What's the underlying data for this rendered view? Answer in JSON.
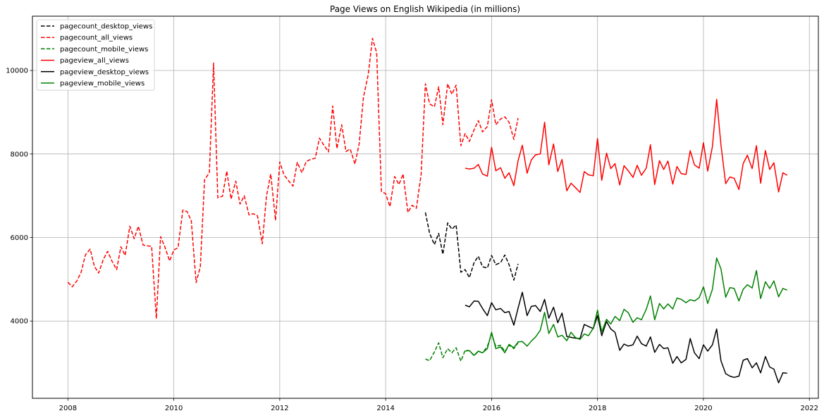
{
  "chart_data": {
    "type": "line",
    "title": "Page Views on English Wikipedia (in millions)",
    "xlabel": "",
    "ylabel": "",
    "xlim": [
      2007.33,
      2022.17
    ],
    "ylim": [
      2150,
      11300
    ],
    "xticks": [
      2008,
      2010,
      2012,
      2014,
      2016,
      2018,
      2020,
      2022
    ],
    "xtick_labels": [
      "2008",
      "2010",
      "2012",
      "2014",
      "2016",
      "2018",
      "2020",
      "2022"
    ],
    "yticks": [
      4000,
      6000,
      8000,
      10000
    ],
    "ytick_labels": [
      "4000",
      "6000",
      "8000",
      "10000"
    ],
    "grid": true,
    "legend_position": "upper-left",
    "series": [
      {
        "name": "pagecount_desktop_views",
        "color": "#000000",
        "dashed": true,
        "x": [
          2014.75,
          2014.83,
          2014.92,
          2015.0,
          2015.08,
          2015.17,
          2015.25,
          2015.33,
          2015.42,
          2015.5,
          2015.58,
          2015.67,
          2015.75,
          2015.83,
          2015.92,
          2016.0,
          2016.08,
          2016.17,
          2016.25,
          2016.33,
          2016.42,
          2016.5
        ],
        "y": [
          6600,
          6100,
          5830,
          6100,
          5600,
          6350,
          6200,
          6300,
          5170,
          5230,
          5040,
          5400,
          5550,
          5300,
          5270,
          5570,
          5350,
          5400,
          5580,
          5350,
          4980,
          5370
        ]
      },
      {
        "name": "pagecount_all_views",
        "color": "#ff0000",
        "dashed": true,
        "x": [
          2008.0,
          2008.08,
          2008.17,
          2008.25,
          2008.33,
          2008.42,
          2008.5,
          2008.58,
          2008.67,
          2008.75,
          2008.83,
          2008.92,
          2009.0,
          2009.08,
          2009.17,
          2009.25,
          2009.33,
          2009.42,
          2009.5,
          2009.58,
          2009.67,
          2009.75,
          2009.83,
          2009.92,
          2010.0,
          2010.08,
          2010.17,
          2010.25,
          2010.33,
          2010.42,
          2010.5,
          2010.58,
          2010.67,
          2010.75,
          2010.83,
          2010.92,
          2011.0,
          2011.08,
          2011.17,
          2011.25,
          2011.33,
          2011.42,
          2011.5,
          2011.58,
          2011.67,
          2011.75,
          2011.83,
          2011.92,
          2012.0,
          2012.08,
          2012.17,
          2012.25,
          2012.33,
          2012.42,
          2012.5,
          2012.58,
          2012.67,
          2012.75,
          2012.83,
          2012.92,
          2013.0,
          2013.08,
          2013.17,
          2013.25,
          2013.33,
          2013.42,
          2013.5,
          2013.58,
          2013.67,
          2013.75,
          2013.83,
          2013.92,
          2014.0,
          2014.08,
          2014.17,
          2014.25,
          2014.33,
          2014.42,
          2014.5,
          2014.58,
          2014.67,
          2014.75,
          2014.83,
          2014.92,
          2015.0,
          2015.08,
          2015.17,
          2015.25,
          2015.33,
          2015.42,
          2015.5,
          2015.58,
          2015.67,
          2015.75,
          2015.83,
          2015.92,
          2016.0,
          2016.08,
          2016.17,
          2016.25,
          2016.33,
          2016.42,
          2016.5
        ],
        "y": [
          4930,
          4820,
          4960,
          5170,
          5580,
          5720,
          5310,
          5150,
          5480,
          5670,
          5440,
          5230,
          5780,
          5570,
          6270,
          5970,
          6270,
          5820,
          5800,
          5790,
          4060,
          6020,
          5780,
          5440,
          5700,
          5760,
          6660,
          6620,
          6400,
          4920,
          5300,
          7380,
          7550,
          10180,
          6950,
          6990,
          7590,
          6920,
          7350,
          6800,
          7000,
          6540,
          6570,
          6520,
          5850,
          7000,
          7520,
          6410,
          7810,
          7500,
          7350,
          7230,
          7800,
          7550,
          7820,
          7870,
          7900,
          8380,
          8220,
          8050,
          9150,
          8130,
          8700,
          8060,
          8120,
          7760,
          8250,
          9360,
          9900,
          10770,
          10420,
          7100,
          7050,
          6740,
          7460,
          7270,
          7520,
          6600,
          6770,
          6700,
          7520,
          9680,
          9200,
          9130,
          9610,
          8700,
          9680,
          9430,
          9650,
          8200,
          8490,
          8300,
          8580,
          8800,
          8530,
          8660,
          9300,
          8700,
          8840,
          8890,
          8760,
          8350,
          8860
        ]
      },
      {
        "name": "pagecount_mobile_views",
        "color": "#008000",
        "dashed": true,
        "x": [
          2014.75,
          2014.83,
          2014.92,
          2015.0,
          2015.08,
          2015.17,
          2015.25,
          2015.33,
          2015.42,
          2015.5,
          2015.58,
          2015.67,
          2015.75,
          2015.83,
          2015.92,
          2016.0,
          2016.08,
          2016.17,
          2016.25,
          2016.33,
          2016.42,
          2016.5
        ],
        "y": [
          3090,
          3050,
          3260,
          3480,
          3120,
          3340,
          3240,
          3360,
          3040,
          3300,
          3290,
          3170,
          3270,
          3240,
          3390,
          3690,
          3390,
          3420,
          3270,
          3420,
          3340,
          3480
        ]
      },
      {
        "name": "pageview_all_views",
        "color": "#ff0000",
        "dashed": false,
        "x": [
          2015.5,
          2015.58,
          2015.67,
          2015.75,
          2015.83,
          2015.92,
          2016.0,
          2016.08,
          2016.17,
          2016.25,
          2016.33,
          2016.42,
          2016.5,
          2016.58,
          2016.67,
          2016.75,
          2016.83,
          2016.92,
          2017.0,
          2017.08,
          2017.17,
          2017.25,
          2017.33,
          2017.42,
          2017.5,
          2017.58,
          2017.67,
          2017.75,
          2017.83,
          2017.92,
          2018.0,
          2018.08,
          2018.17,
          2018.25,
          2018.33,
          2018.42,
          2018.5,
          2018.58,
          2018.67,
          2018.75,
          2018.83,
          2018.92,
          2019.0,
          2019.08,
          2019.17,
          2019.25,
          2019.33,
          2019.42,
          2019.5,
          2019.58,
          2019.67,
          2019.75,
          2019.83,
          2019.92,
          2020.0,
          2020.08,
          2020.17,
          2020.25,
          2020.33,
          2020.42,
          2020.5,
          2020.58,
          2020.67,
          2020.75,
          2020.83,
          2020.92,
          2021.0,
          2021.08,
          2021.17,
          2021.25,
          2021.33,
          2021.42,
          2021.5,
          2021.58
        ],
        "y": [
          7660,
          7640,
          7660,
          7750,
          7520,
          7470,
          8160,
          7600,
          7670,
          7420,
          7550,
          7240,
          7840,
          8210,
          7540,
          7860,
          7980,
          8000,
          8760,
          7740,
          8240,
          7580,
          7870,
          7120,
          7300,
          7200,
          7080,
          7580,
          7500,
          7480,
          8370,
          7370,
          8020,
          7650,
          7770,
          7260,
          7720,
          7600,
          7440,
          7730,
          7490,
          7660,
          8220,
          7270,
          7840,
          7630,
          7830,
          7280,
          7700,
          7530,
          7510,
          8080,
          7740,
          7660,
          8270,
          7590,
          8180,
          9310,
          8220,
          7290,
          7450,
          7420,
          7150,
          7770,
          7970,
          7650,
          8200,
          7300,
          8080,
          7630,
          7790,
          7090,
          7550,
          7490
        ]
      },
      {
        "name": "pageview_desktop_views",
        "color": "#000000",
        "dashed": false,
        "x": [
          2015.5,
          2015.58,
          2015.67,
          2015.75,
          2015.83,
          2015.92,
          2016.0,
          2016.08,
          2016.17,
          2016.25,
          2016.33,
          2016.42,
          2016.5,
          2016.58,
          2016.67,
          2016.75,
          2016.83,
          2016.92,
          2017.0,
          2017.08,
          2017.17,
          2017.25,
          2017.33,
          2017.42,
          2017.5,
          2017.58,
          2017.67,
          2017.75,
          2017.83,
          2017.92,
          2018.0,
          2018.08,
          2018.17,
          2018.25,
          2018.33,
          2018.42,
          2018.5,
          2018.58,
          2018.67,
          2018.75,
          2018.83,
          2018.92,
          2019.0,
          2019.08,
          2019.17,
          2019.25,
          2019.33,
          2019.42,
          2019.5,
          2019.58,
          2019.67,
          2019.75,
          2019.83,
          2019.92,
          2020.0,
          2020.08,
          2020.17,
          2020.25,
          2020.33,
          2020.42,
          2020.5,
          2020.58,
          2020.67,
          2020.75,
          2020.83,
          2020.92,
          2021.0,
          2021.08,
          2021.17,
          2021.25,
          2021.33,
          2021.42,
          2021.5,
          2021.58
        ],
        "y": [
          4380,
          4340,
          4480,
          4470,
          4300,
          4130,
          4440,
          4270,
          4300,
          4200,
          4230,
          3900,
          4310,
          4690,
          4130,
          4350,
          4370,
          4230,
          4520,
          4070,
          4330,
          3960,
          4190,
          3630,
          3610,
          3590,
          3580,
          3920,
          3870,
          3820,
          4130,
          3650,
          3990,
          3810,
          3730,
          3300,
          3450,
          3400,
          3430,
          3640,
          3460,
          3400,
          3620,
          3250,
          3440,
          3340,
          3360,
          2990,
          3150,
          3000,
          3080,
          3580,
          3240,
          3100,
          3430,
          3280,
          3430,
          3810,
          3050,
          2740,
          2680,
          2650,
          2680,
          3060,
          3100,
          2880,
          3000,
          2760,
          3150,
          2900,
          2850,
          2520,
          2760,
          2750
        ]
      },
      {
        "name": "pageview_mobile_views",
        "color": "#008000",
        "dashed": false,
        "x": [
          2015.5,
          2015.58,
          2015.67,
          2015.75,
          2015.83,
          2015.92,
          2016.0,
          2016.08,
          2016.17,
          2016.25,
          2016.33,
          2016.42,
          2016.5,
          2016.58,
          2016.67,
          2016.75,
          2016.83,
          2016.92,
          2017.0,
          2017.08,
          2017.17,
          2017.25,
          2017.33,
          2017.42,
          2017.5,
          2017.58,
          2017.67,
          2017.75,
          2017.83,
          2017.92,
          2018.0,
          2018.08,
          2018.17,
          2018.25,
          2018.33,
          2018.42,
          2018.5,
          2018.58,
          2018.67,
          2018.75,
          2018.83,
          2018.92,
          2019.0,
          2019.08,
          2019.17,
          2019.25,
          2019.33,
          2019.42,
          2019.5,
          2019.58,
          2019.67,
          2019.75,
          2019.83,
          2019.92,
          2020.0,
          2020.08,
          2020.17,
          2020.25,
          2020.33,
          2020.42,
          2020.5,
          2020.58,
          2020.67,
          2020.75,
          2020.83,
          2020.92,
          2021.0,
          2021.08,
          2021.17,
          2021.25,
          2021.33,
          2021.42,
          2021.5,
          2021.58
        ],
        "y": [
          3280,
          3290,
          3180,
          3280,
          3240,
          3340,
          3730,
          3340,
          3380,
          3240,
          3440,
          3360,
          3500,
          3510,
          3400,
          3520,
          3620,
          3780,
          4210,
          3700,
          3920,
          3620,
          3660,
          3530,
          3730,
          3610,
          3560,
          3690,
          3650,
          3830,
          4260,
          3740,
          4040,
          3930,
          4110,
          4010,
          4280,
          4200,
          3970,
          4080,
          4030,
          4280,
          4600,
          4030,
          4420,
          4290,
          4410,
          4290,
          4550,
          4520,
          4440,
          4510,
          4480,
          4560,
          4820,
          4420,
          4760,
          5510,
          5250,
          4570,
          4800,
          4780,
          4480,
          4760,
          4870,
          4790,
          5210,
          4540,
          4940,
          4780,
          4960,
          4580,
          4780,
          4740
        ]
      }
    ]
  }
}
